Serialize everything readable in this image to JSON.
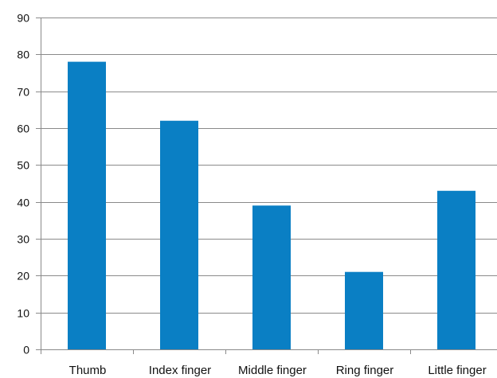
{
  "chart_data": {
    "type": "bar",
    "title": "",
    "xlabel": "",
    "ylabel": "",
    "categories": [
      "Thumb",
      "Index finger",
      "Middle finger",
      "Ring finger",
      "Little finger"
    ],
    "values": [
      78,
      62,
      39,
      21,
      43
    ],
    "ylim": [
      0,
      90
    ],
    "yticks": [
      0,
      10,
      20,
      30,
      40,
      50,
      60,
      70,
      80,
      90
    ],
    "grid": true,
    "legend": "none",
    "bar_color": "#0a7fc4",
    "grid_color": "#8a8a8a",
    "axis_color": "#8a8a8a"
  }
}
